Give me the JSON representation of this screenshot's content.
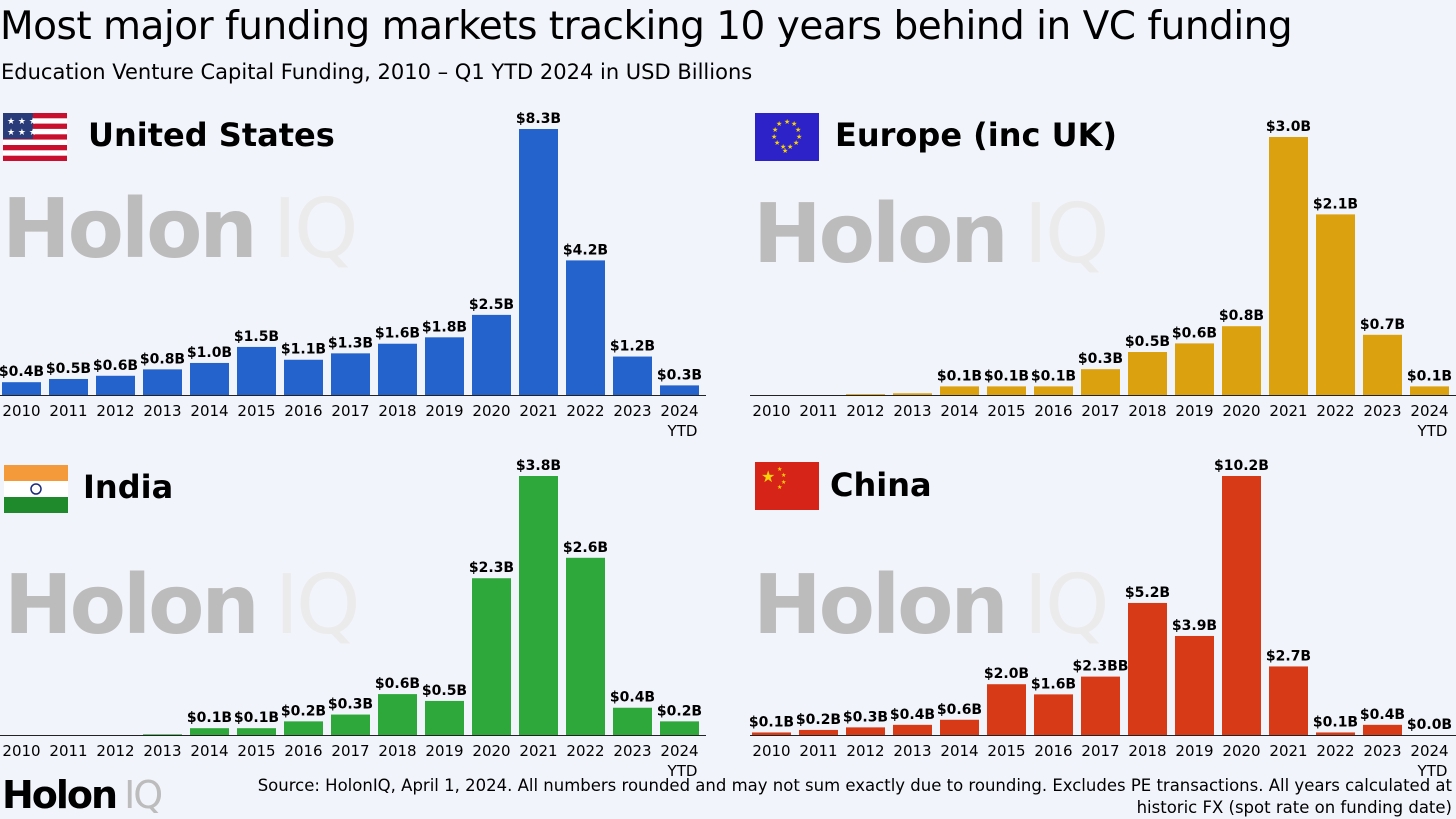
{
  "title": "Most major funding markets tracking 10 years behind in VC funding",
  "subtitle": "Education Venture Capital Funding, 2010 – Q1 YTD 2024 in USD Billions",
  "watermark": {
    "holon": "Holon",
    "iq": "IQ"
  },
  "footer": {
    "logo_holon": "Holon",
    "logo_iq": "IQ",
    "source": "Source: HolonIQ, April 1, 2024. All numbers rounded and may not sum exactly due to rounding. Excludes PE transactions. All years calculated at historic FX (spot rate on funding date)"
  },
  "chart_data": [
    {
      "type": "bar",
      "region": "United States",
      "color": "#2563cc",
      "flag": "us-flag",
      "categories": [
        "2010",
        "2011",
        "2012",
        "2013",
        "2014",
        "2015",
        "2016",
        "2017",
        "2018",
        "2019",
        "2020",
        "2021",
        "2022",
        "2023",
        "2024"
      ],
      "category_sublabels": {
        "2024": "YTD"
      },
      "values": [
        0.4,
        0.5,
        0.6,
        0.8,
        1.0,
        1.5,
        1.1,
        1.3,
        1.6,
        1.8,
        2.5,
        8.3,
        4.2,
        1.2,
        0.3
      ],
      "data_labels": [
        "$0.4B",
        "$0.5B",
        "$0.6B",
        "$0.8B",
        "$1.0B",
        "$1.5B",
        "$1.1B",
        "$1.3B",
        "$1.6B",
        "$1.8B",
        "$2.5B",
        "$8.3B",
        "$4.2B",
        "$1.2B",
        "$0.3B"
      ]
    },
    {
      "type": "bar",
      "region": "Europe (inc UK)",
      "color": "#dba10f",
      "flag": "eu-flag",
      "categories": [
        "2010",
        "2011",
        "2012",
        "2013",
        "2014",
        "2015",
        "2016",
        "2017",
        "2018",
        "2019",
        "2020",
        "2021",
        "2022",
        "2023",
        "2024"
      ],
      "category_sublabels": {
        "2024": "YTD"
      },
      "values": [
        0.0,
        0.0,
        0.01,
        0.02,
        0.1,
        0.1,
        0.1,
        0.3,
        0.5,
        0.6,
        0.8,
        3.0,
        2.1,
        0.7,
        0.1
      ],
      "data_labels": [
        "",
        "",
        "",
        "",
        "$0.1B",
        "$0.1B",
        "$0.1B",
        "$0.3B",
        "$0.5B",
        "$0.6B",
        "$0.8B",
        "$3.0B",
        "$2.1B",
        "$0.7B",
        "$0.1B"
      ]
    },
    {
      "type": "bar",
      "region": "India",
      "color": "#2ea83a",
      "flag": "india-flag",
      "categories": [
        "2010",
        "2011",
        "2012",
        "2013",
        "2014",
        "2015",
        "2016",
        "2017",
        "2018",
        "2019",
        "2020",
        "2021",
        "2022",
        "2023",
        "2024"
      ],
      "category_sublabels": {
        "2024": "YTD"
      },
      "values": [
        0.0,
        0.0,
        0.0,
        0.01,
        0.1,
        0.1,
        0.2,
        0.3,
        0.6,
        0.5,
        2.3,
        3.8,
        2.6,
        0.4,
        0.2
      ],
      "data_labels": [
        "",
        "",
        "",
        "",
        "$0.1B",
        "$0.1B",
        "$0.2B",
        "$0.3B",
        "$0.6B",
        "$0.5B",
        "$2.3B",
        "$3.8B",
        "$2.6B",
        "$0.4B",
        "$0.2B"
      ]
    },
    {
      "type": "bar",
      "region": "China",
      "color": "#d63a16",
      "flag": "china-flag",
      "categories": [
        "2010",
        "2011",
        "2012",
        "2013",
        "2014",
        "2015",
        "2016",
        "2017",
        "2018",
        "2019",
        "2020",
        "2021",
        "2022",
        "2023",
        "2024"
      ],
      "category_sublabels": {
        "2024": "YTD"
      },
      "values": [
        0.1,
        0.2,
        0.3,
        0.4,
        0.6,
        2.0,
        1.6,
        2.3,
        5.2,
        3.9,
        10.2,
        2.7,
        0.1,
        0.4,
        0.0
      ],
      "data_labels": [
        "$0.1B",
        "$0.2B",
        "$0.3B",
        "$0.4B",
        "$0.6B",
        "$2.0B",
        "$1.6B",
        "$2.3BB",
        "$5.2B",
        "$3.9B",
        "$10.2B",
        "$2.7B",
        "$0.1B",
        "$0.4B",
        "$0.0B"
      ]
    }
  ]
}
